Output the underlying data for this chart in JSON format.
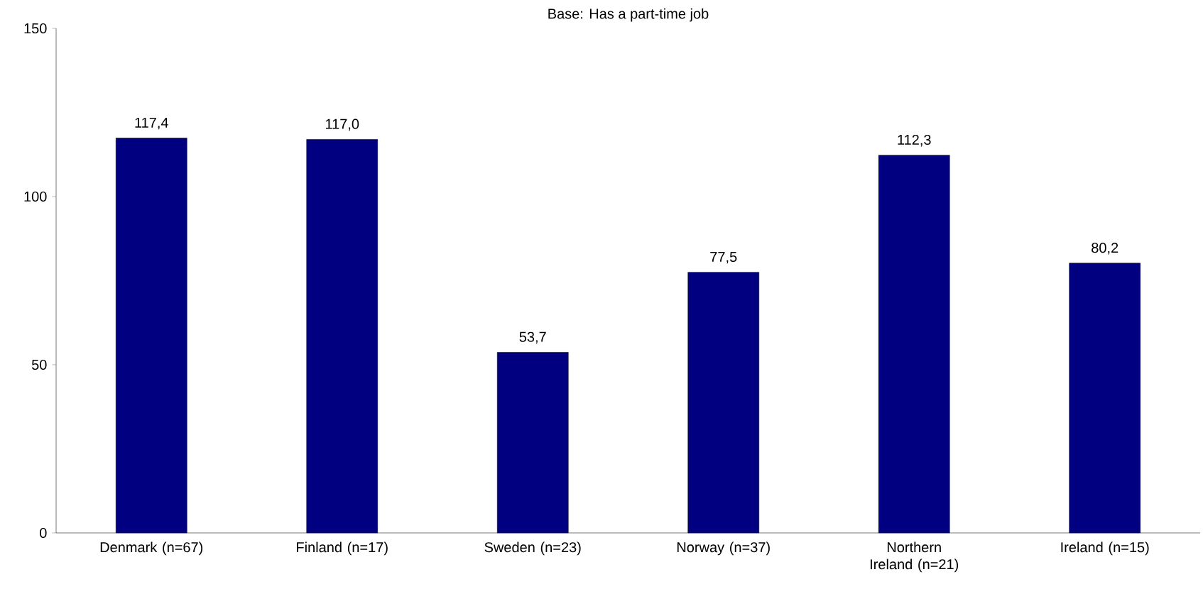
{
  "chart_data": {
    "type": "bar",
    "title": "Base: Has a part-time job",
    "categories": [
      "Denmark (n=67)",
      "Finland (n=17)",
      "Sweden (n=23)",
      "Norway (n=37)",
      "Northern Ireland (n=21)",
      "Ireland (n=15)"
    ],
    "values": [
      117.4,
      117.0,
      53.7,
      77.5,
      112.3,
      80.2
    ],
    "value_labels": [
      "117,4",
      "117,0",
      "53,7",
      "77,5",
      "112,3",
      "80,2"
    ],
    "color": "#000080",
    "ylim": [
      0,
      150
    ],
    "yticks": [
      0,
      50,
      100,
      150
    ],
    "grid": false
  }
}
